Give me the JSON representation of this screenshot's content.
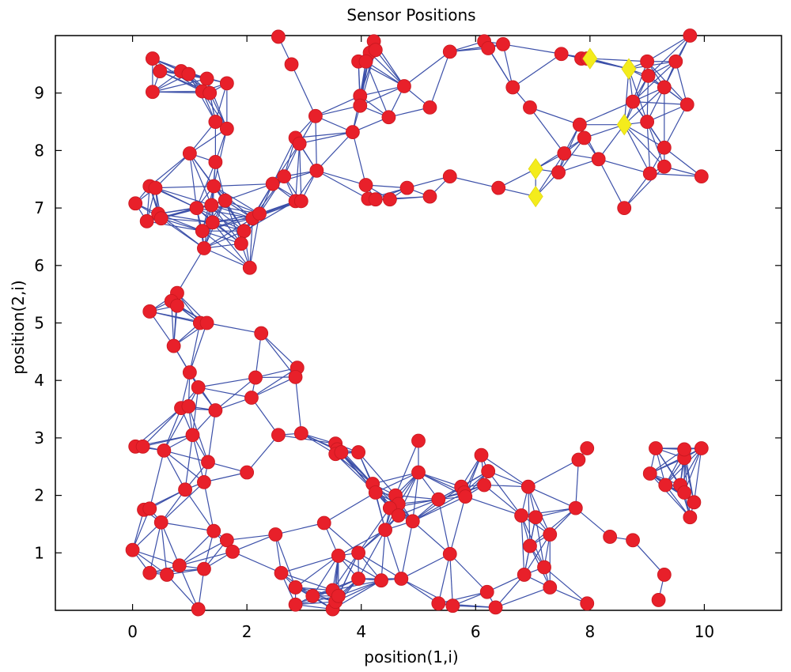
{
  "chart_data": {
    "type": "scatter",
    "title": "Sensor Positions",
    "xlabel": "position(1,i)",
    "ylabel": "position(2,i)",
    "xlim": [
      -1.35,
      11.35
    ],
    "ylim": [
      0,
      10
    ],
    "xticks": [
      0,
      2,
      4,
      6,
      8,
      10
    ],
    "yticks": [
      1,
      2,
      3,
      4,
      5,
      6,
      7,
      8,
      9
    ],
    "grid": false,
    "legend": "none",
    "series": [
      {
        "marker": "circle",
        "color": "#e8202a",
        "points": [
          [
            0.35,
            9.6
          ],
          [
            0.48,
            9.38
          ],
          [
            0.85,
            9.38
          ],
          [
            0.98,
            9.33
          ],
          [
            1.3,
            9.25
          ],
          [
            0.35,
            9.02
          ],
          [
            1.22,
            9.03
          ],
          [
            1.35,
            9.0
          ],
          [
            1.65,
            9.17
          ],
          [
            1.45,
            8.5
          ],
          [
            1.65,
            8.38
          ],
          [
            1.0,
            7.95
          ],
          [
            1.45,
            7.8
          ],
          [
            0.3,
            7.38
          ],
          [
            0.4,
            7.35
          ],
          [
            0.05,
            7.08
          ],
          [
            0.25,
            6.77
          ],
          [
            0.45,
            6.9
          ],
          [
            0.5,
            6.82
          ],
          [
            1.12,
            7.0
          ],
          [
            1.42,
            7.38
          ],
          [
            1.38,
            7.05
          ],
          [
            1.62,
            7.13
          ],
          [
            1.4,
            6.75
          ],
          [
            1.22,
            6.6
          ],
          [
            1.25,
            6.3
          ],
          [
            1.95,
            6.6
          ],
          [
            1.9,
            6.38
          ],
          [
            2.1,
            6.82
          ],
          [
            2.05,
            5.96
          ],
          [
            2.22,
            6.9
          ],
          [
            0.78,
            5.52
          ],
          [
            0.68,
            5.38
          ],
          [
            0.78,
            5.3
          ],
          [
            0.3,
            5.2
          ],
          [
            1.18,
            5.0
          ],
          [
            1.3,
            5.0
          ],
          [
            0.72,
            4.6
          ],
          [
            1.0,
            4.14
          ],
          [
            2.25,
            4.82
          ],
          [
            1.15,
            3.88
          ],
          [
            2.15,
            4.05
          ],
          [
            2.88,
            4.22
          ],
          [
            2.85,
            4.06
          ],
          [
            2.08,
            3.7
          ],
          [
            0.85,
            3.52
          ],
          [
            0.98,
            3.55
          ],
          [
            1.45,
            3.48
          ],
          [
            2.55,
            9.98
          ],
          [
            2.78,
            9.5
          ],
          [
            3.2,
            8.6
          ],
          [
            2.85,
            8.22
          ],
          [
            2.92,
            8.12
          ],
          [
            2.65,
            7.55
          ],
          [
            2.45,
            7.42
          ],
          [
            3.22,
            7.65
          ],
          [
            2.85,
            7.12
          ],
          [
            2.95,
            7.12
          ],
          [
            3.85,
            8.32
          ],
          [
            3.95,
            9.55
          ],
          [
            4.15,
            9.7
          ],
          [
            4.22,
            9.9
          ],
          [
            4.25,
            9.75
          ],
          [
            4.08,
            9.55
          ],
          [
            3.98,
            8.95
          ],
          [
            3.98,
            8.78
          ],
          [
            4.48,
            8.58
          ],
          [
            4.75,
            9.12
          ],
          [
            5.2,
            8.75
          ],
          [
            4.08,
            7.4
          ],
          [
            4.12,
            7.16
          ],
          [
            4.25,
            7.15
          ],
          [
            4.5,
            7.15
          ],
          [
            4.8,
            7.35
          ],
          [
            5.2,
            7.2
          ],
          [
            5.55,
            7.55
          ],
          [
            5.55,
            9.72
          ],
          [
            6.15,
            9.9
          ],
          [
            6.22,
            9.78
          ],
          [
            6.48,
            9.85
          ],
          [
            6.65,
            9.1
          ],
          [
            6.95,
            8.75
          ],
          [
            6.4,
            7.35
          ],
          [
            7.5,
            9.68
          ],
          [
            7.85,
            9.6
          ],
          [
            7.95,
            9.6
          ],
          [
            7.82,
            8.45
          ],
          [
            7.9,
            8.22
          ],
          [
            7.55,
            7.95
          ],
          [
            7.45,
            7.62
          ],
          [
            8.15,
            7.85
          ],
          [
            8.6,
            7.0
          ],
          [
            9.0,
            9.55
          ],
          [
            9.5,
            9.55
          ],
          [
            9.75,
            10.0
          ],
          [
            9.02,
            9.3
          ],
          [
            9.3,
            9.1
          ],
          [
            8.75,
            8.85
          ],
          [
            9.0,
            8.5
          ],
          [
            9.7,
            8.8
          ],
          [
            9.3,
            8.05
          ],
          [
            9.05,
            7.6
          ],
          [
            9.3,
            7.72
          ],
          [
            9.95,
            7.55
          ],
          [
            0.05,
            2.85
          ],
          [
            0.18,
            2.85
          ],
          [
            0.55,
            2.78
          ],
          [
            1.05,
            3.05
          ],
          [
            1.32,
            2.58
          ],
          [
            1.25,
            2.23
          ],
          [
            0.92,
            2.1
          ],
          [
            0.2,
            1.75
          ],
          [
            0.3,
            1.77
          ],
          [
            0.5,
            1.53
          ],
          [
            1.42,
            1.38
          ],
          [
            1.65,
            1.22
          ],
          [
            1.75,
            1.02
          ],
          [
            0.0,
            1.05
          ],
          [
            0.3,
            0.65
          ],
          [
            0.6,
            0.62
          ],
          [
            0.82,
            0.78
          ],
          [
            1.25,
            0.72
          ],
          [
            1.15,
            0.02
          ],
          [
            2.0,
            2.4
          ],
          [
            2.55,
            3.05
          ],
          [
            2.95,
            3.08
          ],
          [
            3.55,
            2.9
          ],
          [
            3.58,
            2.8
          ],
          [
            3.55,
            2.72
          ],
          [
            3.65,
            2.75
          ],
          [
            3.95,
            2.75
          ],
          [
            2.5,
            1.32
          ],
          [
            3.35,
            1.52
          ],
          [
            3.6,
            0.95
          ],
          [
            3.95,
            1.0
          ],
          [
            3.95,
            0.55
          ],
          [
            4.35,
            0.52
          ],
          [
            2.6,
            0.65
          ],
          [
            2.85,
            0.4
          ],
          [
            2.85,
            0.1
          ],
          [
            3.15,
            0.25
          ],
          [
            3.5,
            0.35
          ],
          [
            3.5,
            0.02
          ],
          [
            3.55,
            0.15
          ],
          [
            3.6,
            0.25
          ],
          [
            4.2,
            2.2
          ],
          [
            4.25,
            2.05
          ],
          [
            4.6,
            2.0
          ],
          [
            4.65,
            1.85
          ],
          [
            4.5,
            1.78
          ],
          [
            4.42,
            1.4
          ],
          [
            4.65,
            1.65
          ],
          [
            4.9,
            1.55
          ],
          [
            4.7,
            0.55
          ],
          [
            5.0,
            2.4
          ],
          [
            5.0,
            2.95
          ],
          [
            5.35,
            1.93
          ],
          [
            5.55,
            0.98
          ],
          [
            5.35,
            0.12
          ],
          [
            5.6,
            0.08
          ],
          [
            5.75,
            2.15
          ],
          [
            5.8,
            2.05
          ],
          [
            5.82,
            1.98
          ],
          [
            6.15,
            2.18
          ],
          [
            6.1,
            2.7
          ],
          [
            6.22,
            2.42
          ],
          [
            6.2,
            0.32
          ],
          [
            6.35,
            0.05
          ],
          [
            6.92,
            2.15
          ],
          [
            6.8,
            1.65
          ],
          [
            7.05,
            1.62
          ],
          [
            6.95,
            1.12
          ],
          [
            6.85,
            0.62
          ],
          [
            7.2,
            0.75
          ],
          [
            7.3,
            0.4
          ],
          [
            7.3,
            1.32
          ],
          [
            7.75,
            1.78
          ],
          [
            7.8,
            2.62
          ],
          [
            7.95,
            2.82
          ],
          [
            7.95,
            0.12
          ],
          [
            8.35,
            1.28
          ],
          [
            8.75,
            1.22
          ],
          [
            9.15,
            2.82
          ],
          [
            9.05,
            2.38
          ],
          [
            9.32,
            2.18
          ],
          [
            9.58,
            2.18
          ],
          [
            9.65,
            2.05
          ],
          [
            9.65,
            2.65
          ],
          [
            9.65,
            2.8
          ],
          [
            9.82,
            1.88
          ],
          [
            9.75,
            1.62
          ],
          [
            9.95,
            2.82
          ],
          [
            9.3,
            0.62
          ],
          [
            9.2,
            0.18
          ]
        ]
      },
      {
        "marker": "diamond",
        "color": "#f4ec1c",
        "points": [
          [
            8.0,
            9.6
          ],
          [
            8.68,
            9.42
          ],
          [
            8.6,
            8.45
          ],
          [
            7.05,
            7.68
          ],
          [
            7.05,
            7.2
          ]
        ]
      }
    ]
  }
}
